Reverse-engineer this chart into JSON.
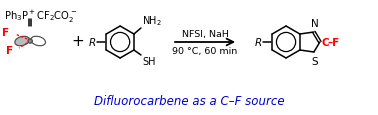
{
  "title_text": "Difluorocarbene as a C–F source",
  "title_color": "#0000cc",
  "title_fontsize": 8.5,
  "reagent_text": "NFSI, NaH",
  "condition_text": "90 °C, 60 min",
  "background_color": "#ffffff",
  "red_color": "#FF0000",
  "black_color": "#000000",
  "gray_color": "#aaaaaa",
  "dark_gray": "#666666",
  "figw": 3.78,
  "figh": 1.16,
  "dpi": 100,
  "xlim": [
    0,
    378
  ],
  "ylim": [
    0,
    116
  ]
}
